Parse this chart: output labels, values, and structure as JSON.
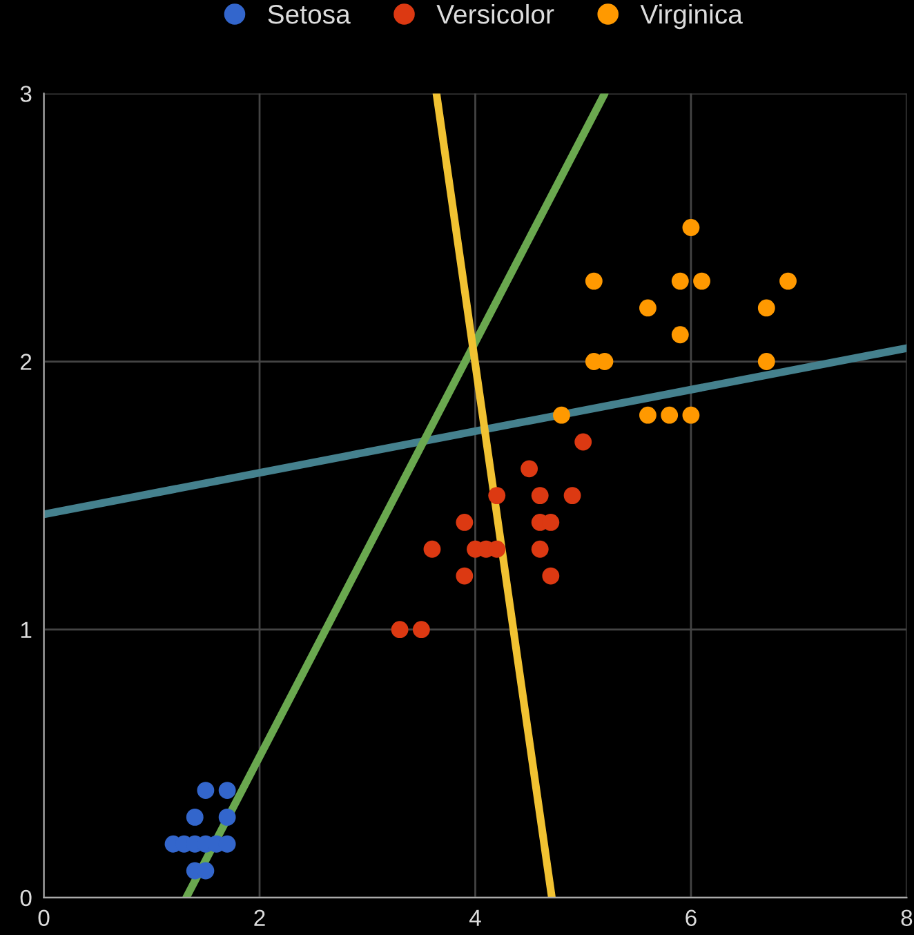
{
  "chart_data": {
    "type": "scatter",
    "xlim": [
      0,
      8
    ],
    "ylim": [
      0,
      3
    ],
    "xticks": [
      0,
      2,
      4,
      6,
      8
    ],
    "yticks": [
      0,
      1,
      2,
      3
    ],
    "grid": true,
    "legend": "top",
    "marker": "circle",
    "series": [
      {
        "name": "Setosa",
        "color": "#3366cc",
        "x": [
          1.2,
          1.3,
          1.4,
          1.5,
          1.6,
          1.7,
          1.4,
          1.7,
          1.5,
          1.7,
          1.4,
          1.5
        ],
        "values": [
          0.2,
          0.2,
          0.2,
          0.2,
          0.2,
          0.2,
          0.3,
          0.3,
          0.4,
          0.4,
          0.1,
          0.1
        ]
      },
      {
        "name": "Versicolor",
        "color": "#dc3912",
        "x": [
          3.3,
          3.5,
          3.6,
          3.9,
          3.9,
          4.0,
          4.1,
          4.2,
          4.2,
          4.5,
          4.6,
          4.6,
          4.7,
          4.6,
          4.7,
          4.9,
          5.0
        ],
        "values": [
          1.0,
          1.0,
          1.3,
          1.4,
          1.2,
          1.3,
          1.3,
          1.3,
          1.5,
          1.6,
          1.5,
          1.4,
          1.4,
          1.3,
          1.2,
          1.5,
          1.7
        ]
      },
      {
        "name": "Virginica",
        "color": "#ff9900",
        "x": [
          4.8,
          5.1,
          5.1,
          5.2,
          5.6,
          5.6,
          5.8,
          5.9,
          5.9,
          6.0,
          6.0,
          6.1,
          6.7,
          6.7,
          6.9
        ],
        "values": [
          1.8,
          2.3,
          2.0,
          2.0,
          2.2,
          1.8,
          1.8,
          2.1,
          2.3,
          2.5,
          1.8,
          2.3,
          2.2,
          2.0,
          2.3
        ]
      },
      {
        "type": "line",
        "color": "#45818e",
        "marker": "none",
        "x": [
          0,
          8
        ],
        "values": [
          1.43,
          2.05
        ]
      },
      {
        "type": "line",
        "color": "#6aa84f",
        "marker": "none",
        "x": [
          1.32,
          5.2
        ],
        "values": [
          0,
          3
        ]
      },
      {
        "type": "line",
        "color": "#f1c232",
        "marker": "none",
        "x": [
          3.64,
          4.71
        ],
        "values": [
          3,
          0
        ]
      }
    ]
  }
}
